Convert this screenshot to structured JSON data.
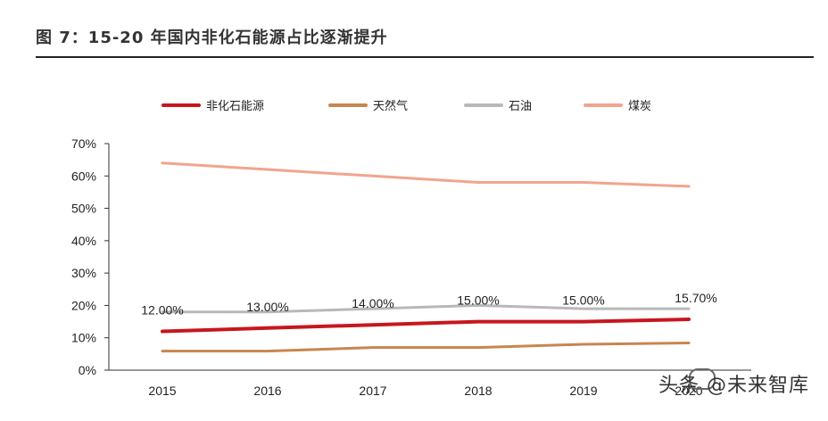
{
  "title": "图 7：15-20 年国内非化石能源占比逐渐提升",
  "watermark": "头条 @未来智库",
  "chart_data": {
    "type": "line",
    "x": [
      "2015",
      "2016",
      "2017",
      "2018",
      "2019",
      "2020"
    ],
    "ylim": [
      0,
      70
    ],
    "yticks": [
      "0%",
      "10%",
      "20%",
      "30%",
      "40%",
      "50%",
      "60%",
      "70%"
    ],
    "legend_position": "top",
    "grid": false,
    "series": [
      {
        "name": "非化石能源",
        "color": "#c8161d",
        "values": [
          12.0,
          13.0,
          14.0,
          15.0,
          15.0,
          15.7
        ],
        "labels": [
          "12.00%",
          "13.00%",
          "14.00%",
          "15.00%",
          "15.00%",
          "15.70%"
        ]
      },
      {
        "name": "天然气",
        "color": "#c8864f",
        "values": [
          5.9,
          5.9,
          7.0,
          7.0,
          8.0,
          8.4
        ]
      },
      {
        "name": "石油",
        "color": "#b8b8b8",
        "values": [
          18.0,
          18.0,
          19.0,
          20.0,
          19.0,
          19.0
        ]
      },
      {
        "name": "煤炭",
        "color": "#f2a48f",
        "values": [
          64.0,
          62.0,
          60.0,
          58.0,
          58.0,
          56.8
        ]
      }
    ]
  }
}
